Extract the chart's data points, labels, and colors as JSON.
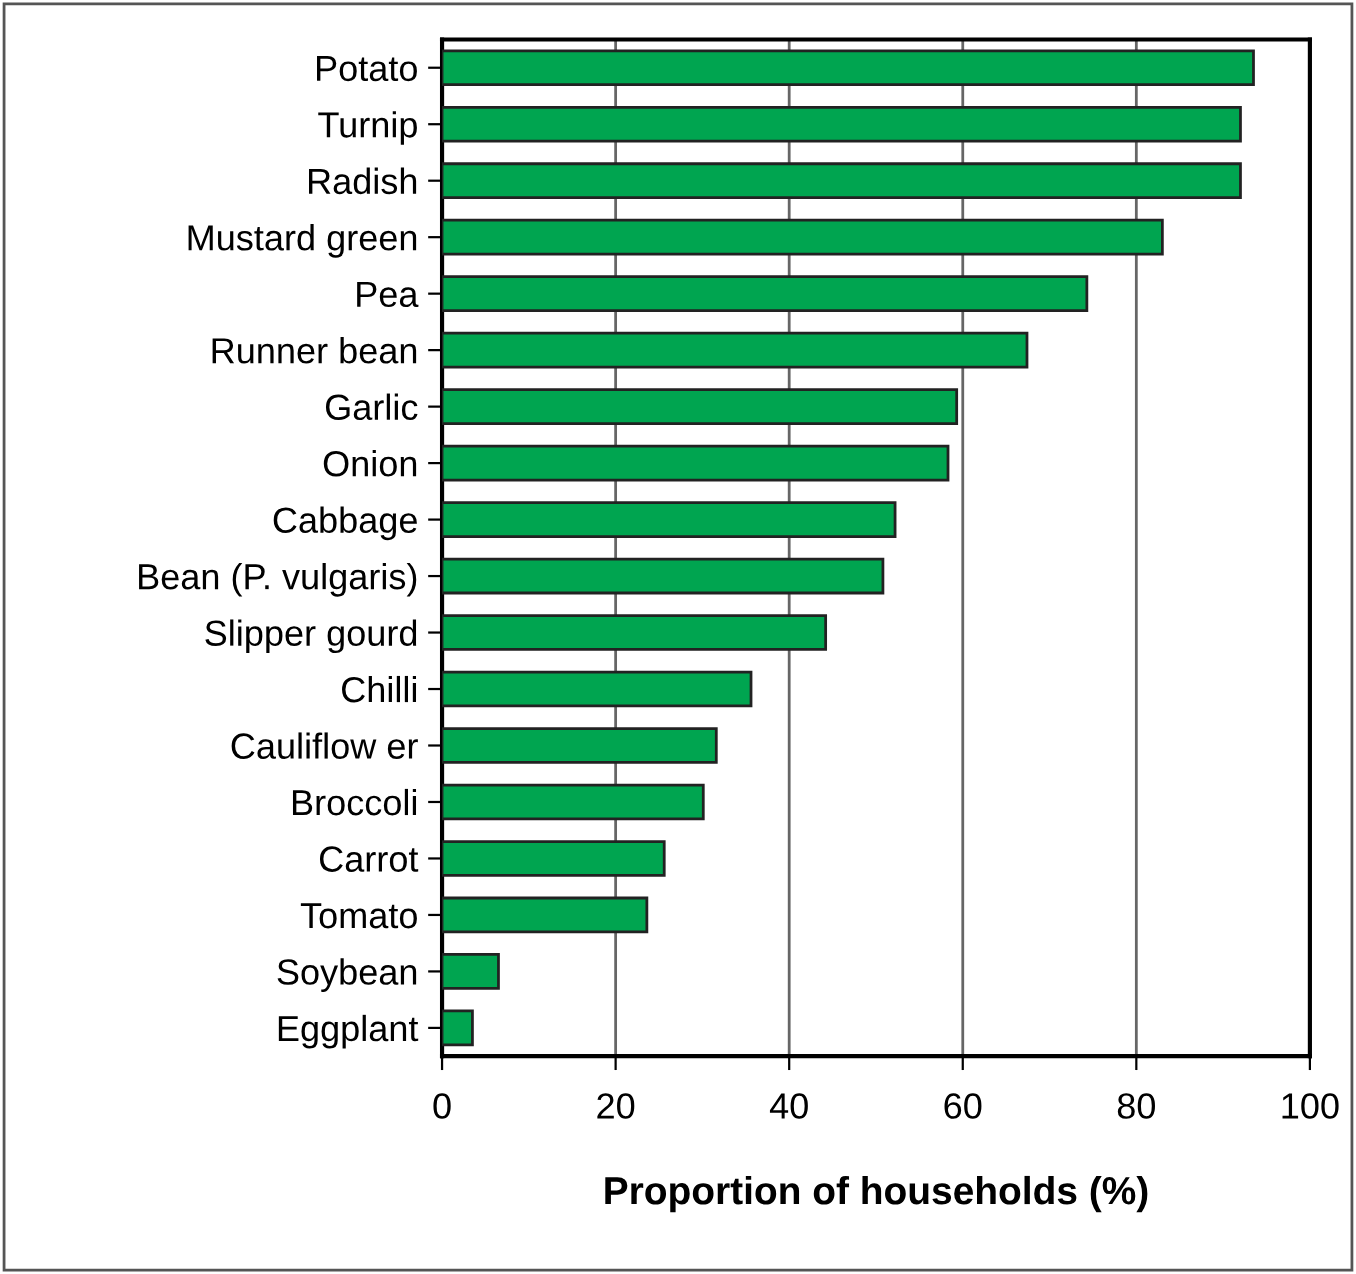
{
  "chart_data": {
    "type": "bar",
    "orientation": "horizontal",
    "xlabel": "Proportion of households (%)",
    "categories": [
      "Potato",
      "Turnip",
      "Radish",
      "Mustard green",
      "Pea",
      "Runner bean",
      "Garlic",
      "Onion",
      "Cabbage",
      "Bean (P. vulgaris)",
      "Slipper gourd",
      "Chilli",
      "Cauliflow er",
      "Broccoli",
      "Carrot",
      "Tomato",
      "Soybean",
      "Eggplant"
    ],
    "values": [
      93.5,
      92.0,
      92.0,
      83.0,
      74.3,
      67.4,
      59.3,
      58.3,
      52.2,
      50.8,
      44.2,
      35.6,
      31.6,
      30.1,
      25.6,
      23.6,
      6.5,
      3.5
    ],
    "color": "#00a550",
    "xlim": [
      0,
      100
    ],
    "xticks": [
      0,
      20,
      40,
      60,
      80,
      100
    ],
    "grid": "x",
    "legend": false
  }
}
